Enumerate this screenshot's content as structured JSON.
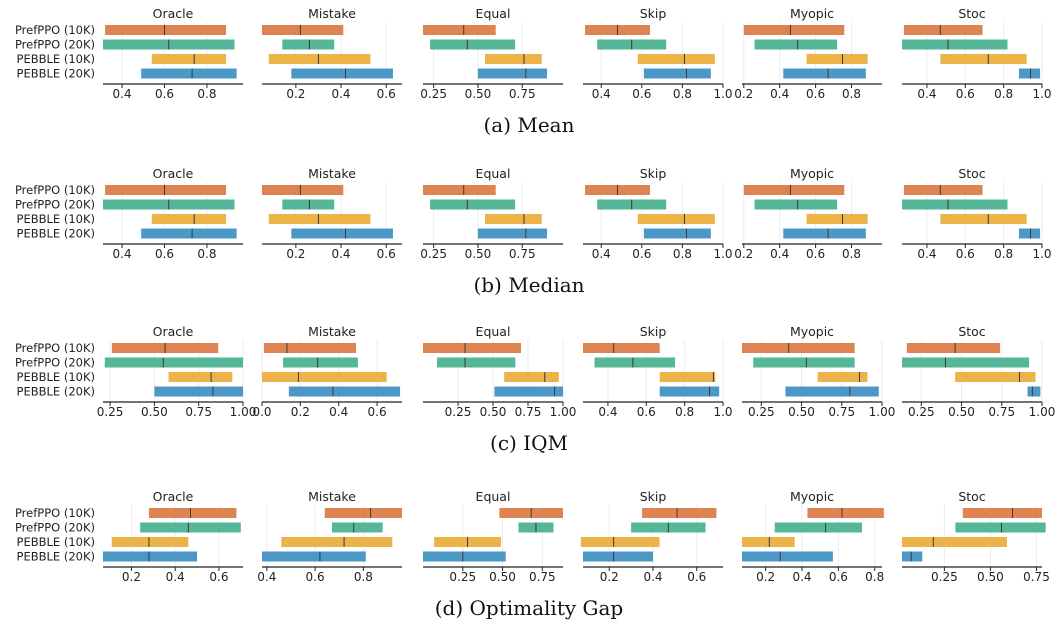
{
  "colors": {
    "PrefPPO (10K)": "#dd8452",
    "PrefPPO (20K)": "#55b698",
    "PEBBLE (10K)": "#ecb448",
    "PEBBLE (20K)": "#4b98c7"
  },
  "chart_data": [
    {
      "type": "interval",
      "caption": "(a) Mean",
      "algorithms": [
        "PrefPPO (10K)",
        "PrefPPO (20K)",
        "PEBBLE (10K)",
        "PEBBLE (20K)"
      ],
      "panels": [
        {
          "title": "Oracle",
          "xlim": [
            0.31,
            0.97
          ],
          "xticks": [
            0.4,
            0.6,
            0.8
          ],
          "tick_labels": [
            "0.4",
            "0.6",
            "0.8"
          ],
          "intervals": [
            [
              0.32,
              0.89,
              0.6
            ],
            [
              0.31,
              0.93,
              0.62
            ],
            [
              0.54,
              0.89,
              0.74
            ],
            [
              0.49,
              0.94,
              0.73
            ]
          ]
        },
        {
          "title": "Mistake",
          "xlim": [
            0.05,
            0.67
          ],
          "xticks": [
            0.2,
            0.4,
            0.6
          ],
          "tick_labels": [
            "0.2",
            "0.4",
            "0.6"
          ],
          "intervals": [
            [
              0.05,
              0.41,
              0.22
            ],
            [
              0.14,
              0.37,
              0.26
            ],
            [
              0.08,
              0.53,
              0.3
            ],
            [
              0.18,
              0.63,
              0.42
            ]
          ]
        },
        {
          "title": "Equal",
          "xlim": [
            0.19,
            0.98
          ],
          "xticks": [
            0.25,
            0.5,
            0.75
          ],
          "tick_labels": [
            "0.25",
            "0.50",
            "0.75"
          ],
          "intervals": [
            [
              0.19,
              0.6,
              0.42
            ],
            [
              0.23,
              0.71,
              0.44
            ],
            [
              0.54,
              0.86,
              0.76
            ],
            [
              0.5,
              0.89,
              0.77
            ]
          ]
        },
        {
          "title": "Skip",
          "xlim": [
            0.31,
            1.0
          ],
          "xticks": [
            0.4,
            0.6,
            0.8,
            1.0
          ],
          "tick_labels": [
            "0.4",
            "0.6",
            "0.8",
            "1.0"
          ],
          "intervals": [
            [
              0.32,
              0.64,
              0.48
            ],
            [
              0.38,
              0.72,
              0.55
            ],
            [
              0.58,
              0.96,
              0.81
            ],
            [
              0.61,
              0.94,
              0.82
            ]
          ]
        },
        {
          "title": "Myopic",
          "xlim": [
            0.19,
            0.97
          ],
          "xticks": [
            0.2,
            0.4,
            0.6,
            0.8
          ],
          "tick_labels": [
            "0.2",
            "0.4",
            "0.6",
            "0.8"
          ],
          "intervals": [
            [
              0.2,
              0.76,
              0.46
            ],
            [
              0.26,
              0.72,
              0.5
            ],
            [
              0.55,
              0.89,
              0.75
            ],
            [
              0.42,
              0.88,
              0.67
            ]
          ]
        },
        {
          "title": "Stoc",
          "xlim": [
            0.27,
            1.0
          ],
          "xticks": [
            0.4,
            0.6,
            0.8,
            1.0
          ],
          "tick_labels": [
            "0.4",
            "0.6",
            "0.8",
            "1.0"
          ],
          "intervals": [
            [
              0.28,
              0.69,
              0.47
            ],
            [
              0.27,
              0.82,
              0.51
            ],
            [
              0.47,
              0.92,
              0.72
            ],
            [
              0.88,
              0.99,
              0.94
            ]
          ]
        }
      ]
    },
    {
      "type": "interval",
      "caption": "(b) Median",
      "algorithms": [
        "PrefPPO (10K)",
        "PrefPPO (20K)",
        "PEBBLE (10K)",
        "PEBBLE (20K)"
      ],
      "panels": [
        {
          "title": "Oracle",
          "xlim": [
            0.31,
            0.97
          ],
          "xticks": [
            0.4,
            0.6,
            0.8
          ],
          "tick_labels": [
            "0.4",
            "0.6",
            "0.8"
          ],
          "intervals": [
            [
              0.32,
              0.89,
              0.6
            ],
            [
              0.31,
              0.93,
              0.62
            ],
            [
              0.54,
              0.89,
              0.74
            ],
            [
              0.49,
              0.94,
              0.73
            ]
          ]
        },
        {
          "title": "Mistake",
          "xlim": [
            0.05,
            0.67
          ],
          "xticks": [
            0.2,
            0.4,
            0.6
          ],
          "tick_labels": [
            "0.2",
            "0.4",
            "0.6"
          ],
          "intervals": [
            [
              0.05,
              0.41,
              0.22
            ],
            [
              0.14,
              0.37,
              0.26
            ],
            [
              0.08,
              0.53,
              0.3
            ],
            [
              0.18,
              0.63,
              0.42
            ]
          ]
        },
        {
          "title": "Equal",
          "xlim": [
            0.19,
            0.98
          ],
          "xticks": [
            0.25,
            0.5,
            0.75
          ],
          "tick_labels": [
            "0.25",
            "0.50",
            "0.75"
          ],
          "intervals": [
            [
              0.19,
              0.6,
              0.42
            ],
            [
              0.23,
              0.71,
              0.44
            ],
            [
              0.54,
              0.86,
              0.76
            ],
            [
              0.5,
              0.89,
              0.77
            ]
          ]
        },
        {
          "title": "Skip",
          "xlim": [
            0.31,
            1.0
          ],
          "xticks": [
            0.4,
            0.6,
            0.8,
            1.0
          ],
          "tick_labels": [
            "0.4",
            "0.6",
            "0.8",
            "1.0"
          ],
          "intervals": [
            [
              0.32,
              0.64,
              0.48
            ],
            [
              0.38,
              0.72,
              0.55
            ],
            [
              0.58,
              0.96,
              0.81
            ],
            [
              0.61,
              0.94,
              0.82
            ]
          ]
        },
        {
          "title": "Myopic",
          "xlim": [
            0.19,
            0.97
          ],
          "xticks": [
            0.2,
            0.4,
            0.6,
            0.8
          ],
          "tick_labels": [
            "0.2",
            "0.4",
            "0.6",
            "0.8"
          ],
          "intervals": [
            [
              0.2,
              0.76,
              0.46
            ],
            [
              0.26,
              0.72,
              0.5
            ],
            [
              0.55,
              0.89,
              0.75
            ],
            [
              0.42,
              0.88,
              0.67
            ]
          ]
        },
        {
          "title": "Stoc",
          "xlim": [
            0.27,
            1.0
          ],
          "xticks": [
            0.4,
            0.6,
            0.8,
            1.0
          ],
          "tick_labels": [
            "0.4",
            "0.6",
            "0.8",
            "1.0"
          ],
          "intervals": [
            [
              0.28,
              0.69,
              0.47
            ],
            [
              0.27,
              0.82,
              0.51
            ],
            [
              0.47,
              0.92,
              0.72
            ],
            [
              0.88,
              0.99,
              0.94
            ]
          ]
        }
      ]
    },
    {
      "type": "interval",
      "caption": "(c) IQM",
      "algorithms": [
        "PrefPPO (10K)",
        "PrefPPO (20K)",
        "PEBBLE (10K)",
        "PEBBLE (20K)"
      ],
      "panels": [
        {
          "title": "Oracle",
          "xlim": [
            0.21,
            1.0
          ],
          "xticks": [
            0.25,
            0.5,
            0.75,
            1.0
          ],
          "tick_labels": [
            "0.25",
            "0.50",
            "0.75",
            "1.00"
          ],
          "intervals": [
            [
              0.26,
              0.86,
              0.56
            ],
            [
              0.22,
              1.0,
              0.55
            ],
            [
              0.58,
              0.94,
              0.82
            ],
            [
              0.5,
              1.0,
              0.83
            ]
          ]
        },
        {
          "title": "Mistake",
          "xlim": [
            0.0,
            0.73
          ],
          "xticks": [
            0.0,
            0.2,
            0.4,
            0.6
          ],
          "tick_labels": [
            "0.0",
            "0.2",
            "0.4",
            "0.6"
          ],
          "intervals": [
            [
              0.01,
              0.49,
              0.13
            ],
            [
              0.11,
              0.5,
              0.29
            ],
            [
              0.0,
              0.65,
              0.19
            ],
            [
              0.14,
              0.72,
              0.37
            ]
          ]
        },
        {
          "title": "Equal",
          "xlim": [
            0.0,
            1.0
          ],
          "xticks": [
            0.25,
            0.5,
            0.75,
            1.0
          ],
          "tick_labels": [
            "0.25",
            "0.50",
            "0.75",
            "1.00"
          ],
          "intervals": [
            [
              0.0,
              0.7,
              0.3
            ],
            [
              0.1,
              0.66,
              0.3
            ],
            [
              0.58,
              0.97,
              0.87
            ],
            [
              0.51,
              1.0,
              0.94
            ]
          ]
        },
        {
          "title": "Skip",
          "xlim": [
            0.27,
            1.0
          ],
          "xticks": [
            0.4,
            0.6,
            0.8,
            1.0
          ],
          "tick_labels": [
            "0.4",
            "0.6",
            "0.8",
            "1.0"
          ],
          "intervals": [
            [
              0.27,
              0.67,
              0.43
            ],
            [
              0.33,
              0.75,
              0.53
            ],
            [
              0.67,
              0.96,
              0.95
            ],
            [
              0.67,
              0.98,
              0.93
            ]
          ]
        },
        {
          "title": "Myopic",
          "xlim": [
            0.13,
            1.0
          ],
          "xticks": [
            0.25,
            0.5,
            0.75,
            1.0
          ],
          "tick_labels": [
            "0.25",
            "0.50",
            "0.75",
            "1.00"
          ],
          "intervals": [
            [
              0.13,
              0.83,
              0.42
            ],
            [
              0.2,
              0.83,
              0.53
            ],
            [
              0.6,
              0.91,
              0.86
            ],
            [
              0.4,
              0.98,
              0.8
            ]
          ]
        },
        {
          "title": "Stoc",
          "xlim": [
            0.13,
            1.0
          ],
          "xticks": [
            0.25,
            0.5,
            0.75,
            1.0
          ],
          "tick_labels": [
            "0.25",
            "0.50",
            "0.75",
            "1.00"
          ],
          "intervals": [
            [
              0.16,
              0.74,
              0.46
            ],
            [
              0.13,
              0.92,
              0.4
            ],
            [
              0.46,
              0.96,
              0.86
            ],
            [
              0.91,
              0.99,
              0.94
            ]
          ]
        }
      ]
    },
    {
      "type": "interval",
      "caption": "(d) Optimality Gap",
      "algorithms": [
        "PrefPPO (10K)",
        "PrefPPO (20K)",
        "PEBBLE (10K)",
        "PEBBLE (20K)"
      ],
      "panels": [
        {
          "title": "Oracle",
          "xlim": [
            0.07,
            0.71
          ],
          "xticks": [
            0.2,
            0.4,
            0.6
          ],
          "tick_labels": [
            "0.2",
            "0.4",
            "0.6"
          ],
          "intervals": [
            [
              0.28,
              0.68,
              0.47
            ],
            [
              0.24,
              0.7,
              0.46
            ],
            [
              0.11,
              0.46,
              0.28
            ],
            [
              0.07,
              0.5,
              0.28
            ]
          ]
        },
        {
          "title": "Mistake",
          "xlim": [
            0.38,
            0.96
          ],
          "xticks": [
            0.4,
            0.6,
            0.8
          ],
          "tick_labels": [
            "0.4",
            "0.6",
            "0.8"
          ],
          "intervals": [
            [
              0.64,
              0.96,
              0.83
            ],
            [
              0.67,
              0.88,
              0.76
            ],
            [
              0.46,
              0.92,
              0.72
            ],
            [
              0.38,
              0.81,
              0.62
            ]
          ]
        },
        {
          "title": "Equal",
          "xlim": [
            0.0,
            0.88
          ],
          "xticks": [
            0.25,
            0.5,
            0.75
          ],
          "tick_labels": [
            "0.25",
            "0.50",
            "0.75"
          ],
          "intervals": [
            [
              0.48,
              0.88,
              0.68
            ],
            [
              0.6,
              0.82,
              0.71
            ],
            [
              0.07,
              0.49,
              0.28
            ],
            [
              0.0,
              0.52,
              0.25
            ]
          ]
        },
        {
          "title": "Skip",
          "xlim": [
            0.08,
            0.72
          ],
          "xticks": [
            0.2,
            0.4,
            0.6
          ],
          "tick_labels": [
            "0.2",
            "0.4",
            "0.6"
          ],
          "intervals": [
            [
              0.35,
              0.69,
              0.51
            ],
            [
              0.3,
              0.64,
              0.47
            ],
            [
              0.07,
              0.43,
              0.22
            ],
            [
              0.08,
              0.4,
              0.22
            ]
          ]
        },
        {
          "title": "Myopic",
          "xlim": [
            0.07,
            0.84
          ],
          "xticks": [
            0.2,
            0.4,
            0.6,
            0.8
          ],
          "tick_labels": [
            "0.2",
            "0.4",
            "0.6",
            "0.8"
          ],
          "intervals": [
            [
              0.43,
              0.85,
              0.62
            ],
            [
              0.25,
              0.73,
              0.53
            ],
            [
              0.07,
              0.36,
              0.22
            ],
            [
              0.07,
              0.57,
              0.28
            ]
          ]
        },
        {
          "title": "Stoc",
          "xlim": [
            0.02,
            0.78
          ],
          "xticks": [
            0.25,
            0.5,
            0.75
          ],
          "tick_labels": [
            "0.25",
            "0.50",
            "0.75"
          ],
          "intervals": [
            [
              0.35,
              0.78,
              0.62
            ],
            [
              0.31,
              0.8,
              0.56
            ],
            [
              0.02,
              0.59,
              0.19
            ],
            [
              0.02,
              0.13,
              0.07
            ]
          ]
        }
      ]
    }
  ]
}
